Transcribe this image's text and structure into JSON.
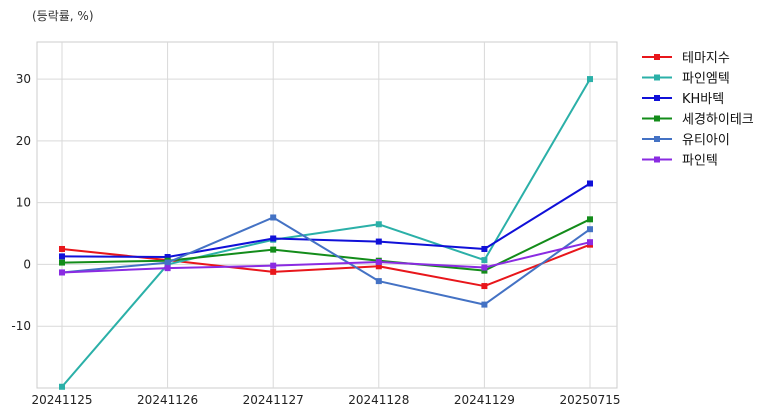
{
  "chart_data": {
    "type": "line",
    "title": "",
    "unit_label": "(등락률, %)",
    "xlabel": "",
    "ylabel": "",
    "categories": [
      "20241125",
      "20241126",
      "20241127",
      "20241128",
      "20241129",
      "20250715"
    ],
    "ylim": [
      -20,
      36
    ],
    "yticks": [
      -10,
      0,
      10,
      20,
      30
    ],
    "grid": true,
    "legend_position": "right",
    "series": [
      {
        "name": "테마지수",
        "color": "#e8161b",
        "values": [
          2.5,
          0.7,
          -1.2,
          -0.3,
          -3.5,
          3.2
        ]
      },
      {
        "name": "파인엠텍",
        "color": "#2bb0a8",
        "values": [
          -19.8,
          0.0,
          4.0,
          6.5,
          0.7,
          30.0
        ]
      },
      {
        "name": "KH바텍",
        "color": "#1010d8",
        "values": [
          1.3,
          1.2,
          4.2,
          3.7,
          2.5,
          13.1
        ]
      },
      {
        "name": "세경하이테크",
        "color": "#138c1a",
        "values": [
          0.3,
          0.6,
          2.4,
          0.6,
          -1.0,
          7.3
        ]
      },
      {
        "name": "유티아이",
        "color": "#4472c4",
        "values": [
          -1.3,
          0.3,
          7.6,
          -2.7,
          -6.5,
          5.7
        ]
      },
      {
        "name": "파인텍",
        "color": "#8a2be2",
        "values": [
          -1.3,
          -0.6,
          -0.2,
          0.4,
          -0.5,
          3.6
        ]
      }
    ]
  }
}
